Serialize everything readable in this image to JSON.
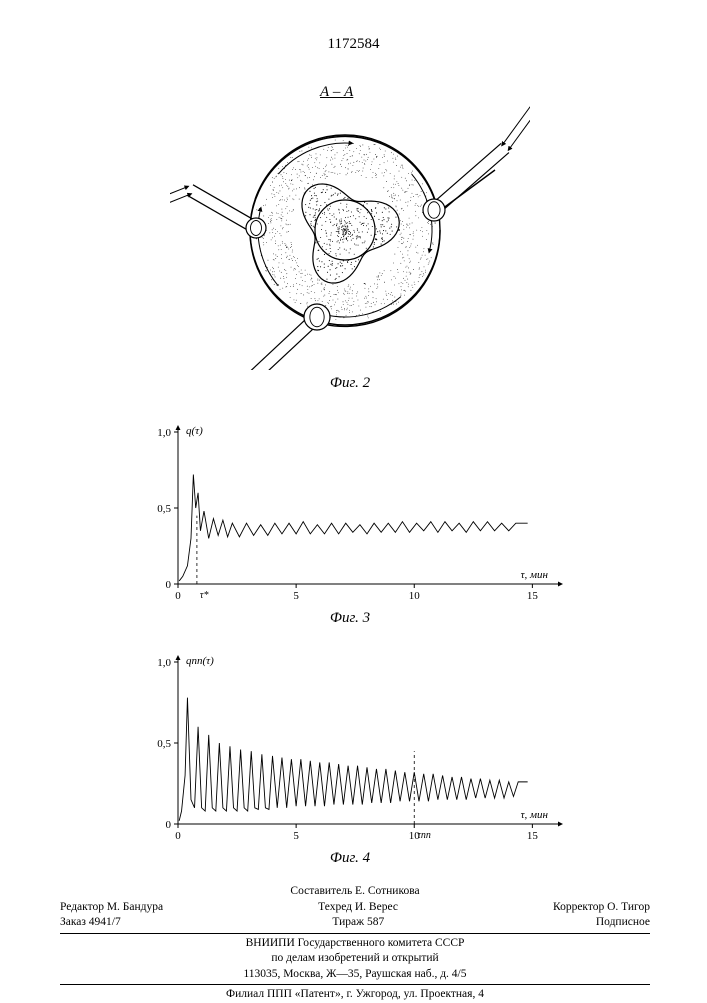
{
  "page_number": "1172584",
  "fig2": {
    "section_label": "А – А",
    "caption": "Фиг. 2",
    "outer_radius": 95,
    "inner_radius_core": 30,
    "inner_radius_lobed": 55,
    "stroke": "#000000",
    "background": "#ffffff",
    "stipple_color": "#000000"
  },
  "fig3": {
    "caption": "Фиг. 3",
    "ylabel": "q(τ)",
    "xlabel": "τ, мин",
    "xlim": [
      0,
      16
    ],
    "ylim": [
      0,
      1.0
    ],
    "xtick_positions": [
      0,
      5,
      10,
      15
    ],
    "xtick_labels": [
      "0",
      "5",
      "10",
      "15"
    ],
    "ytick_positions": [
      0,
      0.5,
      1.0
    ],
    "ytick_labels": [
      "0",
      "0,5",
      "1,0"
    ],
    "dashed_x": 0.8,
    "dashed_label": "τ*",
    "line_color": "#000000",
    "line_width": 0.9,
    "series": [
      [
        0.05,
        0.02
      ],
      [
        0.2,
        0.05
      ],
      [
        0.4,
        0.12
      ],
      [
        0.55,
        0.3
      ],
      [
        0.65,
        0.72
      ],
      [
        0.75,
        0.5
      ],
      [
        0.85,
        0.6
      ],
      [
        0.95,
        0.35
      ],
      [
        1.1,
        0.48
      ],
      [
        1.3,
        0.3
      ],
      [
        1.5,
        0.43
      ],
      [
        1.7,
        0.32
      ],
      [
        1.9,
        0.42
      ],
      [
        2.1,
        0.31
      ],
      [
        2.3,
        0.4
      ],
      [
        2.6,
        0.31
      ],
      [
        2.9,
        0.4
      ],
      [
        3.2,
        0.32
      ],
      [
        3.5,
        0.39
      ],
      [
        3.8,
        0.32
      ],
      [
        4.1,
        0.4
      ],
      [
        4.4,
        0.33
      ],
      [
        4.7,
        0.4
      ],
      [
        5.0,
        0.33
      ],
      [
        5.3,
        0.41
      ],
      [
        5.6,
        0.33
      ],
      [
        5.9,
        0.39
      ],
      [
        6.2,
        0.33
      ],
      [
        6.5,
        0.4
      ],
      [
        6.8,
        0.33
      ],
      [
        7.1,
        0.4
      ],
      [
        7.4,
        0.34
      ],
      [
        7.7,
        0.39
      ],
      [
        8.0,
        0.33
      ],
      [
        8.3,
        0.4
      ],
      [
        8.6,
        0.34
      ],
      [
        8.9,
        0.4
      ],
      [
        9.2,
        0.34
      ],
      [
        9.5,
        0.41
      ],
      [
        9.8,
        0.34
      ],
      [
        10.1,
        0.4
      ],
      [
        10.4,
        0.35
      ],
      [
        10.7,
        0.41
      ],
      [
        11.0,
        0.34
      ],
      [
        11.3,
        0.41
      ],
      [
        11.6,
        0.35
      ],
      [
        11.9,
        0.4
      ],
      [
        12.2,
        0.34
      ],
      [
        12.5,
        0.41
      ],
      [
        12.8,
        0.35
      ],
      [
        13.1,
        0.41
      ],
      [
        13.4,
        0.35
      ],
      [
        13.7,
        0.4
      ],
      [
        14.0,
        0.35
      ],
      [
        14.3,
        0.4
      ],
      [
        14.6,
        0.4
      ],
      [
        14.8,
        0.4
      ]
    ]
  },
  "fig4": {
    "caption": "Фиг. 4",
    "ylabel": "qпп(τ)",
    "xlabel": "τ, мин",
    "xlim": [
      0,
      16
    ],
    "ylim": [
      0,
      1.0
    ],
    "xtick_positions": [
      0,
      5,
      10,
      15
    ],
    "xtick_labels": [
      "0",
      "5",
      "10",
      "15"
    ],
    "ytick_positions": [
      0,
      0.5,
      1.0
    ],
    "ytick_labels": [
      "0",
      "0,5",
      "1,0"
    ],
    "dashed_x": 10.0,
    "dashed_label": "τпп",
    "line_color": "#000000",
    "line_width": 0.9,
    "series": [
      [
        0.05,
        0.02
      ],
      [
        0.15,
        0.08
      ],
      [
        0.3,
        0.3
      ],
      [
        0.4,
        0.78
      ],
      [
        0.55,
        0.15
      ],
      [
        0.7,
        0.1
      ],
      [
        0.85,
        0.6
      ],
      [
        1.0,
        0.1
      ],
      [
        1.15,
        0.08
      ],
      [
        1.3,
        0.55
      ],
      [
        1.45,
        0.1
      ],
      [
        1.6,
        0.08
      ],
      [
        1.75,
        0.5
      ],
      [
        1.9,
        0.1
      ],
      [
        2.05,
        0.08
      ],
      [
        2.2,
        0.48
      ],
      [
        2.35,
        0.1
      ],
      [
        2.5,
        0.08
      ],
      [
        2.65,
        0.46
      ],
      [
        2.8,
        0.1
      ],
      [
        2.95,
        0.08
      ],
      [
        3.1,
        0.45
      ],
      [
        3.25,
        0.1
      ],
      [
        3.4,
        0.09
      ],
      [
        3.55,
        0.43
      ],
      [
        3.7,
        0.1
      ],
      [
        3.85,
        0.09
      ],
      [
        4.0,
        0.42
      ],
      [
        4.2,
        0.1
      ],
      [
        4.4,
        0.41
      ],
      [
        4.6,
        0.1
      ],
      [
        4.8,
        0.4
      ],
      [
        5.0,
        0.11
      ],
      [
        5.2,
        0.4
      ],
      [
        5.4,
        0.11
      ],
      [
        5.6,
        0.39
      ],
      [
        5.8,
        0.11
      ],
      [
        6.0,
        0.38
      ],
      [
        6.2,
        0.11
      ],
      [
        6.4,
        0.38
      ],
      [
        6.6,
        0.12
      ],
      [
        6.8,
        0.37
      ],
      [
        7.0,
        0.12
      ],
      [
        7.2,
        0.36
      ],
      [
        7.4,
        0.12
      ],
      [
        7.6,
        0.36
      ],
      [
        7.8,
        0.12
      ],
      [
        8.0,
        0.35
      ],
      [
        8.2,
        0.13
      ],
      [
        8.4,
        0.34
      ],
      [
        8.6,
        0.13
      ],
      [
        8.8,
        0.34
      ],
      [
        9.0,
        0.13
      ],
      [
        9.2,
        0.33
      ],
      [
        9.4,
        0.14
      ],
      [
        9.6,
        0.32
      ],
      [
        9.8,
        0.14
      ],
      [
        10.0,
        0.32
      ],
      [
        10.2,
        0.14
      ],
      [
        10.4,
        0.31
      ],
      [
        10.6,
        0.14
      ],
      [
        10.8,
        0.31
      ],
      [
        11.0,
        0.15
      ],
      [
        11.2,
        0.3
      ],
      [
        11.4,
        0.15
      ],
      [
        11.6,
        0.29
      ],
      [
        11.8,
        0.15
      ],
      [
        12.0,
        0.29
      ],
      [
        12.2,
        0.15
      ],
      [
        12.4,
        0.28
      ],
      [
        12.6,
        0.16
      ],
      [
        12.8,
        0.28
      ],
      [
        13.0,
        0.16
      ],
      [
        13.2,
        0.27
      ],
      [
        13.4,
        0.16
      ],
      [
        13.6,
        0.27
      ],
      [
        13.8,
        0.16
      ],
      [
        14.0,
        0.26
      ],
      [
        14.2,
        0.17
      ],
      [
        14.4,
        0.26
      ],
      [
        14.6,
        0.26
      ],
      [
        14.8,
        0.26
      ]
    ]
  },
  "colophon": {
    "compiler": "Составитель Е. Сотникова",
    "editor": "Редактор М. Бандура",
    "techred": "Техред И. Верес",
    "corrector": "Корректор О. Тигор",
    "order": "Заказ 4941/7",
    "tirage": "Тираж 587",
    "signed": "Подписное",
    "org_line1": "ВНИИПИ Государственного комитета СССР",
    "org_line2": "по делам изобретений и открытий",
    "address1": "113035, Москва, Ж—35, Раушская наб., д. 4/5",
    "address2": "Филиал ППП «Патент», г. Ужгород, ул. Проектная, 4"
  }
}
